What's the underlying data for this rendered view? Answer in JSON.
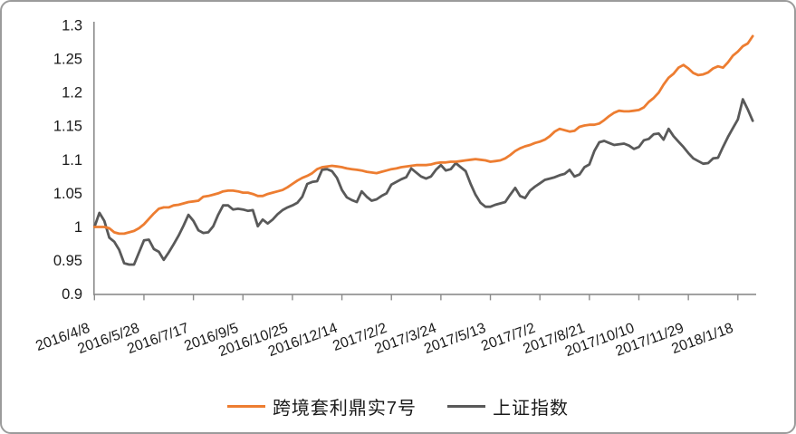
{
  "chart_data": {
    "type": "line",
    "title": "",
    "xlabel": "",
    "ylabel": "",
    "ylim": [
      0.9,
      1.3
    ],
    "y_tick_step": 0.05,
    "grid": false,
    "legend_position": "bottom",
    "y_tick_labels": [
      "1.3",
      "1.25",
      "1.2",
      "1.15",
      "1.1",
      "1.05",
      "1",
      "0.95",
      "0.9"
    ],
    "y_tick_values": [
      1.3,
      1.25,
      1.2,
      1.15,
      1.1,
      1.05,
      1.0,
      0.95,
      0.9
    ],
    "x_tick_labels": [
      "2016/4/8",
      "2016/5/28",
      "2016/7/17",
      "2016/9/5",
      "2016/10/25",
      "2016/12/14",
      "2017/2/2",
      "2017/3/24",
      "2017/5/13",
      "2017/7/2",
      "2017/8/21",
      "2017/10/10",
      "2017/11/29",
      "2018/1/18"
    ],
    "points_per_label_interval": 10,
    "series": [
      {
        "name": "跨境套利鼎实7号",
        "color": "#ED7D31",
        "values": [
          1.0,
          1.0,
          1.0,
          0.998,
          0.992,
          0.99,
          0.99,
          0.992,
          0.994,
          0.998,
          1.004,
          1.012,
          1.02,
          1.027,
          1.029,
          1.029,
          1.032,
          1.033,
          1.035,
          1.037,
          1.038,
          1.039,
          1.045,
          1.046,
          1.048,
          1.05,
          1.053,
          1.054,
          1.054,
          1.053,
          1.051,
          1.051,
          1.049,
          1.046,
          1.046,
          1.049,
          1.051,
          1.053,
          1.055,
          1.059,
          1.064,
          1.069,
          1.073,
          1.076,
          1.08,
          1.086,
          1.089,
          1.09,
          1.091,
          1.09,
          1.089,
          1.087,
          1.086,
          1.085,
          1.084,
          1.082,
          1.081,
          1.08,
          1.082,
          1.084,
          1.086,
          1.087,
          1.089,
          1.09,
          1.091,
          1.092,
          1.092,
          1.092,
          1.093,
          1.095,
          1.096,
          1.096,
          1.097,
          1.097,
          1.098,
          1.099,
          1.1,
          1.101,
          1.1,
          1.099,
          1.097,
          1.098,
          1.099,
          1.102,
          1.107,
          1.113,
          1.117,
          1.12,
          1.122,
          1.125,
          1.127,
          1.13,
          1.135,
          1.142,
          1.146,
          1.144,
          1.142,
          1.143,
          1.149,
          1.151,
          1.152,
          1.152,
          1.154,
          1.159,
          1.165,
          1.17,
          1.173,
          1.172,
          1.172,
          1.173,
          1.174,
          1.178,
          1.186,
          1.192,
          1.2,
          1.212,
          1.222,
          1.228,
          1.237,
          1.241,
          1.236,
          1.229,
          1.226,
          1.227,
          1.23,
          1.236,
          1.239,
          1.237,
          1.245,
          1.255,
          1.261,
          1.269,
          1.273,
          1.284
        ]
      },
      {
        "name": "上证指数",
        "color": "#595959",
        "values": [
          1.0,
          1.021,
          1.009,
          0.984,
          0.978,
          0.966,
          0.946,
          0.944,
          0.944,
          0.962,
          0.98,
          0.981,
          0.967,
          0.963,
          0.951,
          0.962,
          0.974,
          0.987,
          1.002,
          1.018,
          1.009,
          0.995,
          0.991,
          0.992,
          1.001,
          1.018,
          1.032,
          1.032,
          1.026,
          1.027,
          1.026,
          1.024,
          1.025,
          1.001,
          1.011,
          1.005,
          1.011,
          1.019,
          1.025,
          1.029,
          1.032,
          1.036,
          1.045,
          1.064,
          1.067,
          1.068,
          1.085,
          1.086,
          1.083,
          1.073,
          1.055,
          1.044,
          1.04,
          1.037,
          1.053,
          1.045,
          1.039,
          1.041,
          1.046,
          1.05,
          1.063,
          1.067,
          1.071,
          1.074,
          1.087,
          1.081,
          1.075,
          1.072,
          1.075,
          1.085,
          1.092,
          1.084,
          1.086,
          1.095,
          1.089,
          1.083,
          1.064,
          1.048,
          1.036,
          1.03,
          1.03,
          1.033,
          1.035,
          1.037,
          1.048,
          1.058,
          1.046,
          1.043,
          1.054,
          1.06,
          1.065,
          1.07,
          1.072,
          1.074,
          1.077,
          1.079,
          1.085,
          1.075,
          1.078,
          1.089,
          1.093,
          1.113,
          1.126,
          1.128,
          1.125,
          1.122,
          1.123,
          1.124,
          1.121,
          1.116,
          1.119,
          1.129,
          1.131,
          1.138,
          1.139,
          1.13,
          1.146,
          1.135,
          1.127,
          1.119,
          1.11,
          1.102,
          1.098,
          1.094,
          1.095,
          1.102,
          1.103,
          1.119,
          1.134,
          1.147,
          1.16,
          1.19,
          1.175,
          1.158
        ]
      }
    ],
    "colors": {
      "axis": "#8c8c8c",
      "tick": "#8c8c8c",
      "label_text": "#1a1a1a",
      "frame_border": "#9b9b9b",
      "background": "#ffffff"
    }
  }
}
